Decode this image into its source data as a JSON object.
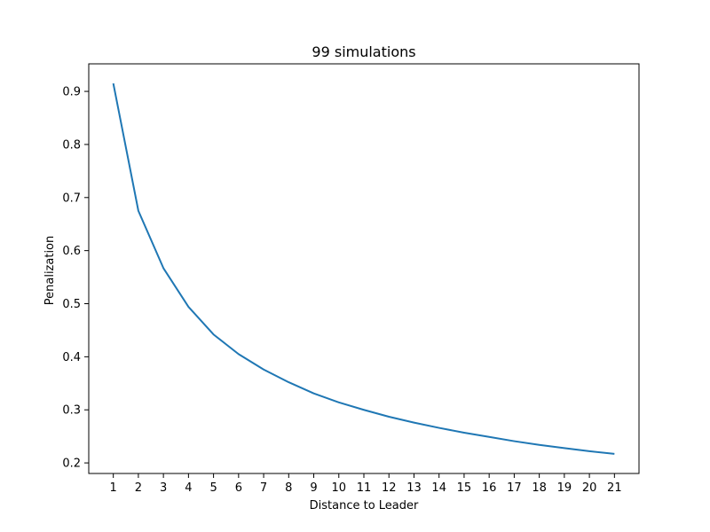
{
  "chart_data": {
    "type": "line",
    "title": "99 simulations",
    "xlabel": "Distance to Leader",
    "ylabel": "Penalization",
    "x": [
      1,
      2,
      3,
      4,
      5,
      6,
      7,
      8,
      9,
      10,
      11,
      12,
      13,
      14,
      15,
      16,
      17,
      18,
      19,
      20,
      21
    ],
    "series": [
      {
        "values": [
          0.915,
          0.675,
          0.567,
          0.494,
          0.442,
          0.405,
          0.376,
          0.352,
          0.331,
          0.314,
          0.3,
          0.287,
          0.276,
          0.266,
          0.257,
          0.249,
          0.241,
          0.234,
          0.228,
          0.222,
          0.217
        ],
        "color": "#1f77b4"
      }
    ],
    "xlim": [
      0.02,
      21.98
    ],
    "ylim": [
      0.1801,
      0.9519
    ],
    "xticks": [
      "1",
      "2",
      "3",
      "4",
      "5",
      "6",
      "7",
      "8",
      "9",
      "10",
      "11",
      "12",
      "13",
      "14",
      "15",
      "16",
      "17",
      "18",
      "19",
      "20",
      "21"
    ],
    "yticks": [
      "0.2",
      "0.3",
      "0.4",
      "0.5",
      "0.6",
      "0.7",
      "0.8",
      "0.9"
    ],
    "grid": false,
    "legend": "none"
  }
}
